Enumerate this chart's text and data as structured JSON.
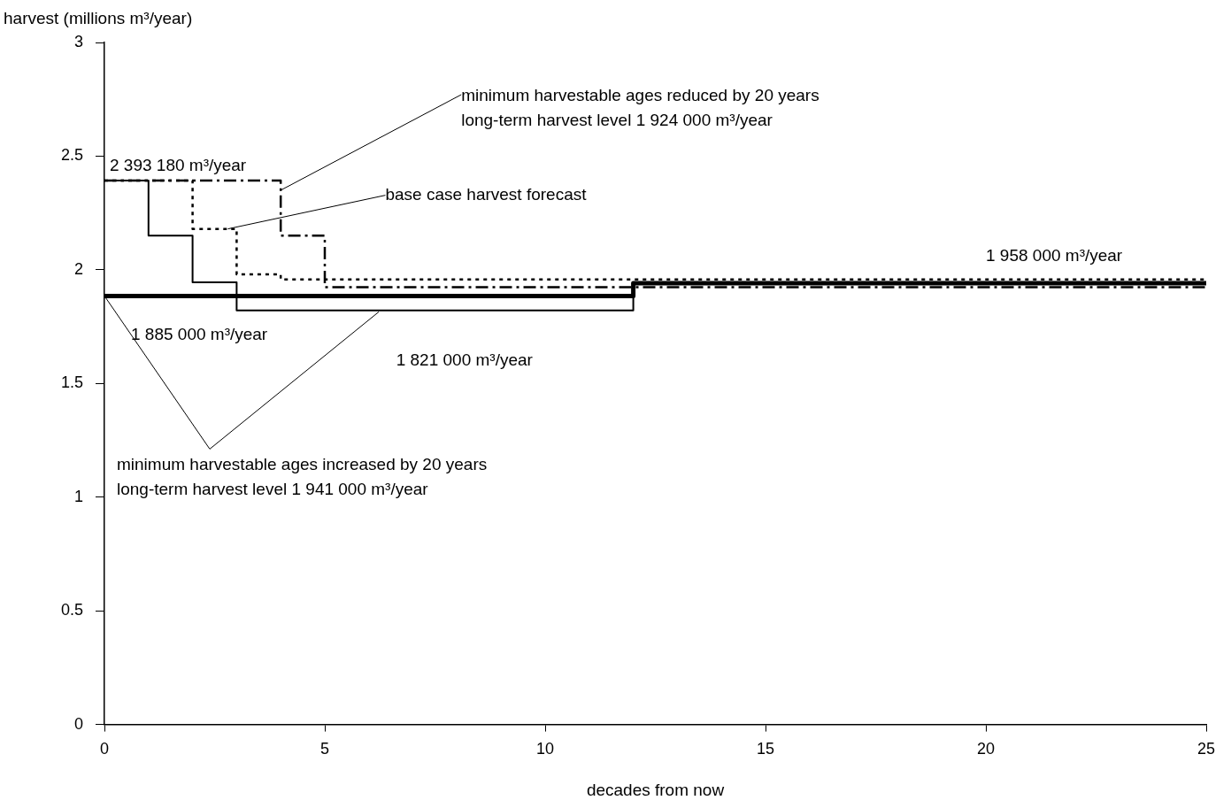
{
  "chart_data": {
    "type": "step",
    "xlabel": "decades from now",
    "ylabel": "harvest (millions m³/year)",
    "xlim": [
      0,
      25
    ],
    "xticks": [
      0,
      5,
      10,
      15,
      20,
      25
    ],
    "ylim": [
      0,
      3
    ],
    "yticks": [
      0,
      0.5,
      1,
      1.5,
      2,
      2.5,
      3
    ],
    "grid": false,
    "legend": false,
    "marker": "none",
    "series": [
      {
        "color": "#000000",
        "line_style": "solid",
        "x": [
          0,
          1,
          2,
          3,
          12,
          25
        ],
        "values": [
          2.393,
          2.15,
          1.945,
          1.821,
          1.941,
          1.941
        ]
      },
      {
        "color": "#000000",
        "line_style": "solid",
        "x": [
          0,
          12,
          25
        ],
        "values": [
          1.885,
          1.941,
          1.941
        ]
      },
      {
        "color": "#000000",
        "line_style": "dotted",
        "x": [
          0,
          2,
          3,
          4,
          25
        ],
        "values": [
          2.393,
          2.18,
          1.98,
          1.958,
          1.958
        ]
      },
      {
        "color": "#000000",
        "line_style": "dashed",
        "x": [
          0,
          4,
          5,
          25
        ],
        "values": [
          2.393,
          2.15,
          1.924,
          1.924
        ]
      }
    ],
    "annotations": [
      {
        "text": "2 393 180 m³/year",
        "x": 0,
        "y": 2.393
      },
      {
        "text": "1 958 000 m³/year",
        "x": 20,
        "y": 1.958
      },
      {
        "text": "1 885 000 m³/year",
        "x": 0,
        "y": 1.885
      },
      {
        "text": "1 821 000 m³/year",
        "x": 6.5,
        "y": 1.821
      },
      {
        "text": "minimum harvestable ages reduced by 20 years\nlong-term harvest level 1 924 000 m³/year",
        "x": 4,
        "y": 2.35
      },
      {
        "text": "base case harvest forecast",
        "x": 2.8,
        "y": 2.18
      },
      {
        "text": "minimum harvestable ages increased by 20 years\nlong-term harvest level 1 941 000 m³/year",
        "x": 0,
        "y": 1.885
      }
    ]
  }
}
